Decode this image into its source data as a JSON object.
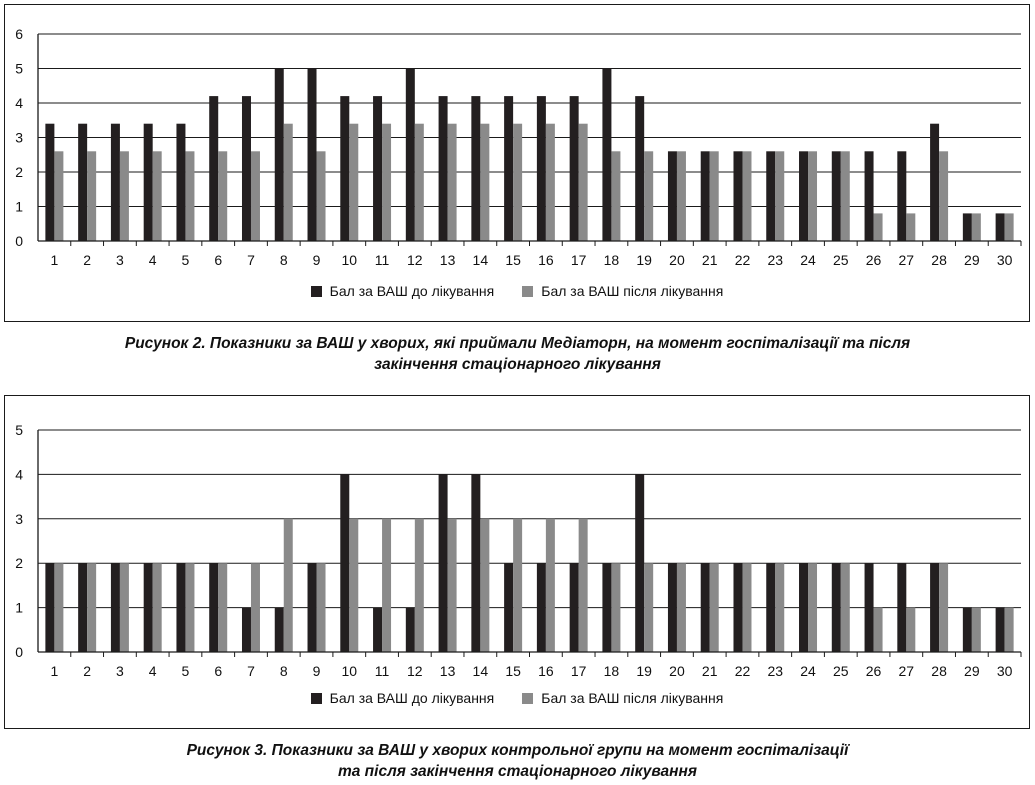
{
  "colors": {
    "before": "#231f20",
    "after": "#8a8a8a",
    "axis": "#1a1a1a"
  },
  "chart_data": [
    {
      "type": "bar",
      "categories": [
        "1",
        "2",
        "3",
        "4",
        "5",
        "6",
        "7",
        "8",
        "9",
        "10",
        "11",
        "12",
        "13",
        "14",
        "15",
        "16",
        "17",
        "18",
        "19",
        "20",
        "21",
        "22",
        "23",
        "24",
        "25",
        "26",
        "27",
        "28",
        "29",
        "30"
      ],
      "ylim": [
        0,
        6
      ],
      "yticks": [
        0,
        1,
        2,
        3,
        4,
        5,
        6
      ],
      "legend_position": "bottom",
      "grid": "horizontal",
      "series": [
        {
          "name": "Бал за ВАШ до лікування",
          "values": [
            3.4,
            3.4,
            3.4,
            3.4,
            3.4,
            4.2,
            4.2,
            5,
            5,
            4.2,
            4.2,
            5,
            4.2,
            4.2,
            4.2,
            4.2,
            4.2,
            5,
            4.2,
            2.6,
            2.6,
            2.6,
            2.6,
            2.6,
            2.6,
            2.6,
            2.6,
            3.4,
            0.8,
            0.8
          ]
        },
        {
          "name": "Бал за ВАШ після лікування",
          "values": [
            2.6,
            2.6,
            2.6,
            2.6,
            2.6,
            2.6,
            2.6,
            3.4,
            2.6,
            3.4,
            3.4,
            3.4,
            3.4,
            3.4,
            3.4,
            3.4,
            3.4,
            2.6,
            2.6,
            2.6,
            2.6,
            2.6,
            2.6,
            2.6,
            2.6,
            0.8,
            0.8,
            2.6,
            0.8,
            0.8
          ]
        }
      ],
      "caption_lines": [
        "Рисунок 2.  Показники за ВАШ у хворих, які приймали Медіаторн, на момент госпіталізації та після",
        "закінчення стаціонарного лікування"
      ]
    },
    {
      "type": "bar",
      "categories": [
        "1",
        "2",
        "3",
        "4",
        "5",
        "6",
        "7",
        "8",
        "9",
        "10",
        "11",
        "12",
        "13",
        "14",
        "15",
        "16",
        "17",
        "18",
        "19",
        "20",
        "21",
        "22",
        "23",
        "24",
        "25",
        "26",
        "27",
        "28",
        "29",
        "30"
      ],
      "ylim": [
        0,
        5
      ],
      "yticks": [
        0,
        1,
        2,
        3,
        4,
        5
      ],
      "legend_position": "bottom",
      "grid": "horizontal",
      "series": [
        {
          "name": "Бал за ВАШ до лікування",
          "values": [
            2,
            2,
            2,
            2,
            2,
            2,
            1,
            1,
            2,
            4,
            1,
            1,
            4,
            4,
            2,
            2,
            2,
            2,
            4,
            2,
            2,
            2,
            2,
            2,
            2,
            2,
            2,
            2,
            1,
            1
          ]
        },
        {
          "name": "Бал за ВАШ після лікування",
          "values": [
            2,
            2,
            2,
            2,
            2,
            2,
            2,
            3,
            2,
            3,
            3,
            3,
            3,
            3,
            3,
            3,
            3,
            2,
            2,
            2,
            2,
            2,
            2,
            2,
            2,
            1,
            1,
            2,
            1,
            1
          ]
        }
      ],
      "caption_lines": [
        "Рисунок 3.  Показники за ВАШ у хворих контрольної групи на момент госпіталізації",
        "та після закінчення стаціонарного лікування"
      ]
    }
  ]
}
